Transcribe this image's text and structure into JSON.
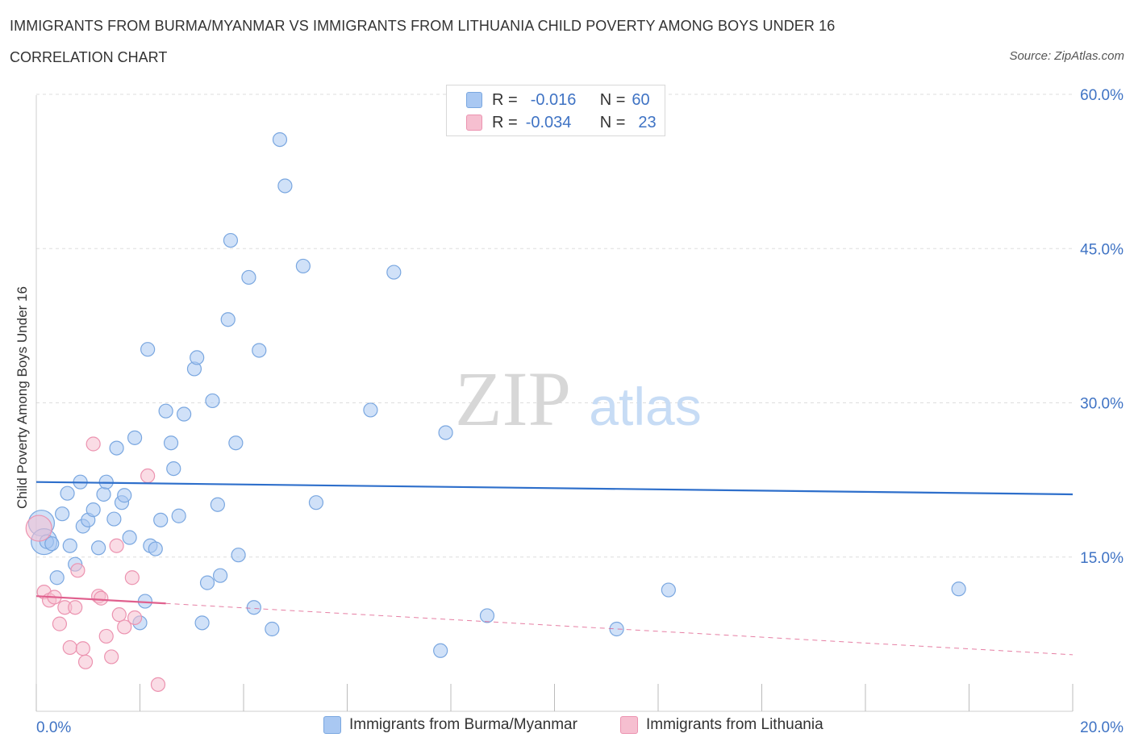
{
  "title": "IMMIGRANTS FROM BURMA/MYANMAR VS IMMIGRANTS FROM LITHUANIA CHILD POVERTY AMONG BOYS UNDER 16",
  "subtitle": "CORRELATION CHART",
  "source": "Source: ZipAtlas.com",
  "watermark": {
    "zip": "ZIP",
    "atlas": "atlas"
  },
  "legend": {
    "rows": [
      {
        "r_label": "R =",
        "r_value": "-0.016",
        "n_label": "N =",
        "n_value": "60"
      },
      {
        "r_label": "R =",
        "r_value": "-0.034",
        "n_label": "N =",
        "n_value": "23"
      }
    ]
  },
  "chart_data": {
    "type": "scatter",
    "title": "IMMIGRANTS FROM BURMA/MYANMAR VS IMMIGRANTS FROM LITHUANIA CHILD POVERTY AMONG BOYS UNDER 16",
    "xlabel": "",
    "ylabel": "Child Poverty Among Boys Under 16",
    "xlim": [
      0,
      20
    ],
    "ylim": [
      0,
      60
    ],
    "x_tick_labels": [
      "0.0%",
      "20.0%"
    ],
    "y_ticks": [
      15,
      30,
      45,
      60
    ],
    "y_tick_labels": [
      "15.0%",
      "30.0%",
      "45.0%",
      "60.0%"
    ],
    "grid": true,
    "series": [
      {
        "name": "Immigrants from Burma/Myanmar",
        "color": "#a9c8f2",
        "stroke": "#7aa7e0",
        "line_color": "#2e6fcb",
        "R": -0.016,
        "N": 60,
        "trend": {
          "x": [
            0,
            20
          ],
          "y": [
            22.3,
            21.1
          ]
        },
        "points": [
          {
            "x": 0.1,
            "y": 18.3,
            "big": true
          },
          {
            "x": 0.15,
            "y": 16.5,
            "big": true
          },
          {
            "x": 0.2,
            "y": 16.5
          },
          {
            "x": 0.3,
            "y": 16.3
          },
          {
            "x": 0.4,
            "y": 13.0
          },
          {
            "x": 0.5,
            "y": 19.2
          },
          {
            "x": 0.6,
            "y": 21.2
          },
          {
            "x": 0.65,
            "y": 16.1
          },
          {
            "x": 0.75,
            "y": 14.3
          },
          {
            "x": 0.85,
            "y": 22.3
          },
          {
            "x": 0.9,
            "y": 18.0
          },
          {
            "x": 1.0,
            "y": 18.6
          },
          {
            "x": 1.1,
            "y": 19.6
          },
          {
            "x": 1.2,
            "y": 15.9
          },
          {
            "x": 1.3,
            "y": 21.1
          },
          {
            "x": 1.35,
            "y": 22.3
          },
          {
            "x": 1.5,
            "y": 18.7
          },
          {
            "x": 1.55,
            "y": 25.6
          },
          {
            "x": 1.65,
            "y": 20.3
          },
          {
            "x": 1.7,
            "y": 21.0
          },
          {
            "x": 1.8,
            "y": 16.9
          },
          {
            "x": 1.9,
            "y": 26.6
          },
          {
            "x": 2.0,
            "y": 8.6
          },
          {
            "x": 2.1,
            "y": 10.7
          },
          {
            "x": 2.15,
            "y": 35.2
          },
          {
            "x": 2.2,
            "y": 16.1
          },
          {
            "x": 2.3,
            "y": 15.8
          },
          {
            "x": 2.4,
            "y": 18.6
          },
          {
            "x": 2.5,
            "y": 29.2
          },
          {
            "x": 2.6,
            "y": 26.1
          },
          {
            "x": 2.65,
            "y": 23.6
          },
          {
            "x": 2.75,
            "y": 19.0
          },
          {
            "x": 2.85,
            "y": 28.9
          },
          {
            "x": 3.05,
            "y": 33.3
          },
          {
            "x": 3.1,
            "y": 34.4
          },
          {
            "x": 3.2,
            "y": 8.6
          },
          {
            "x": 3.3,
            "y": 12.5
          },
          {
            "x": 3.4,
            "y": 30.2
          },
          {
            "x": 3.5,
            "y": 20.1
          },
          {
            "x": 3.55,
            "y": 13.2
          },
          {
            "x": 3.7,
            "y": 38.1
          },
          {
            "x": 3.75,
            "y": 45.8
          },
          {
            "x": 3.85,
            "y": 26.1
          },
          {
            "x": 3.9,
            "y": 15.2
          },
          {
            "x": 4.1,
            "y": 42.2
          },
          {
            "x": 4.2,
            "y": 10.1
          },
          {
            "x": 4.3,
            "y": 35.1
          },
          {
            "x": 4.55,
            "y": 8.0
          },
          {
            "x": 4.7,
            "y": 55.6
          },
          {
            "x": 4.8,
            "y": 51.1
          },
          {
            "x": 5.15,
            "y": 43.3
          },
          {
            "x": 5.4,
            "y": 20.3
          },
          {
            "x": 6.45,
            "y": 29.3
          },
          {
            "x": 6.9,
            "y": 42.7
          },
          {
            "x": 7.8,
            "y": 5.9
          },
          {
            "x": 7.9,
            "y": 27.1
          },
          {
            "x": 8.7,
            "y": 9.3
          },
          {
            "x": 11.2,
            "y": 8.0
          },
          {
            "x": 12.2,
            "y": 11.8
          },
          {
            "x": 17.8,
            "y": 11.9
          }
        ]
      },
      {
        "name": "Immigrants from Lithuania",
        "color": "#f6bfd0",
        "stroke": "#ec93b0",
        "line_color": "#e0608e",
        "R": -0.034,
        "N": 23,
        "trend": {
          "x": [
            0,
            20
          ],
          "y": [
            11.2,
            5.5
          ],
          "solid_until": 2.5
        },
        "points": [
          {
            "x": 0.05,
            "y": 17.8,
            "big": true
          },
          {
            "x": 0.15,
            "y": 11.6
          },
          {
            "x": 0.25,
            "y": 10.8
          },
          {
            "x": 0.35,
            "y": 11.1
          },
          {
            "x": 0.45,
            "y": 8.5
          },
          {
            "x": 0.55,
            "y": 10.1
          },
          {
            "x": 0.65,
            "y": 6.2
          },
          {
            "x": 0.75,
            "y": 10.1
          },
          {
            "x": 0.8,
            "y": 13.7
          },
          {
            "x": 0.9,
            "y": 6.1
          },
          {
            "x": 0.95,
            "y": 4.8
          },
          {
            "x": 1.1,
            "y": 26.0
          },
          {
            "x": 1.2,
            "y": 11.2
          },
          {
            "x": 1.25,
            "y": 11.0
          },
          {
            "x": 1.35,
            "y": 7.3
          },
          {
            "x": 1.45,
            "y": 5.3
          },
          {
            "x": 1.55,
            "y": 16.1
          },
          {
            "x": 1.6,
            "y": 9.4
          },
          {
            "x": 1.7,
            "y": 8.2
          },
          {
            "x": 1.85,
            "y": 13.0
          },
          {
            "x": 1.9,
            "y": 9.1
          },
          {
            "x": 2.15,
            "y": 22.9
          },
          {
            "x": 2.35,
            "y": 2.6
          }
        ]
      }
    ]
  }
}
